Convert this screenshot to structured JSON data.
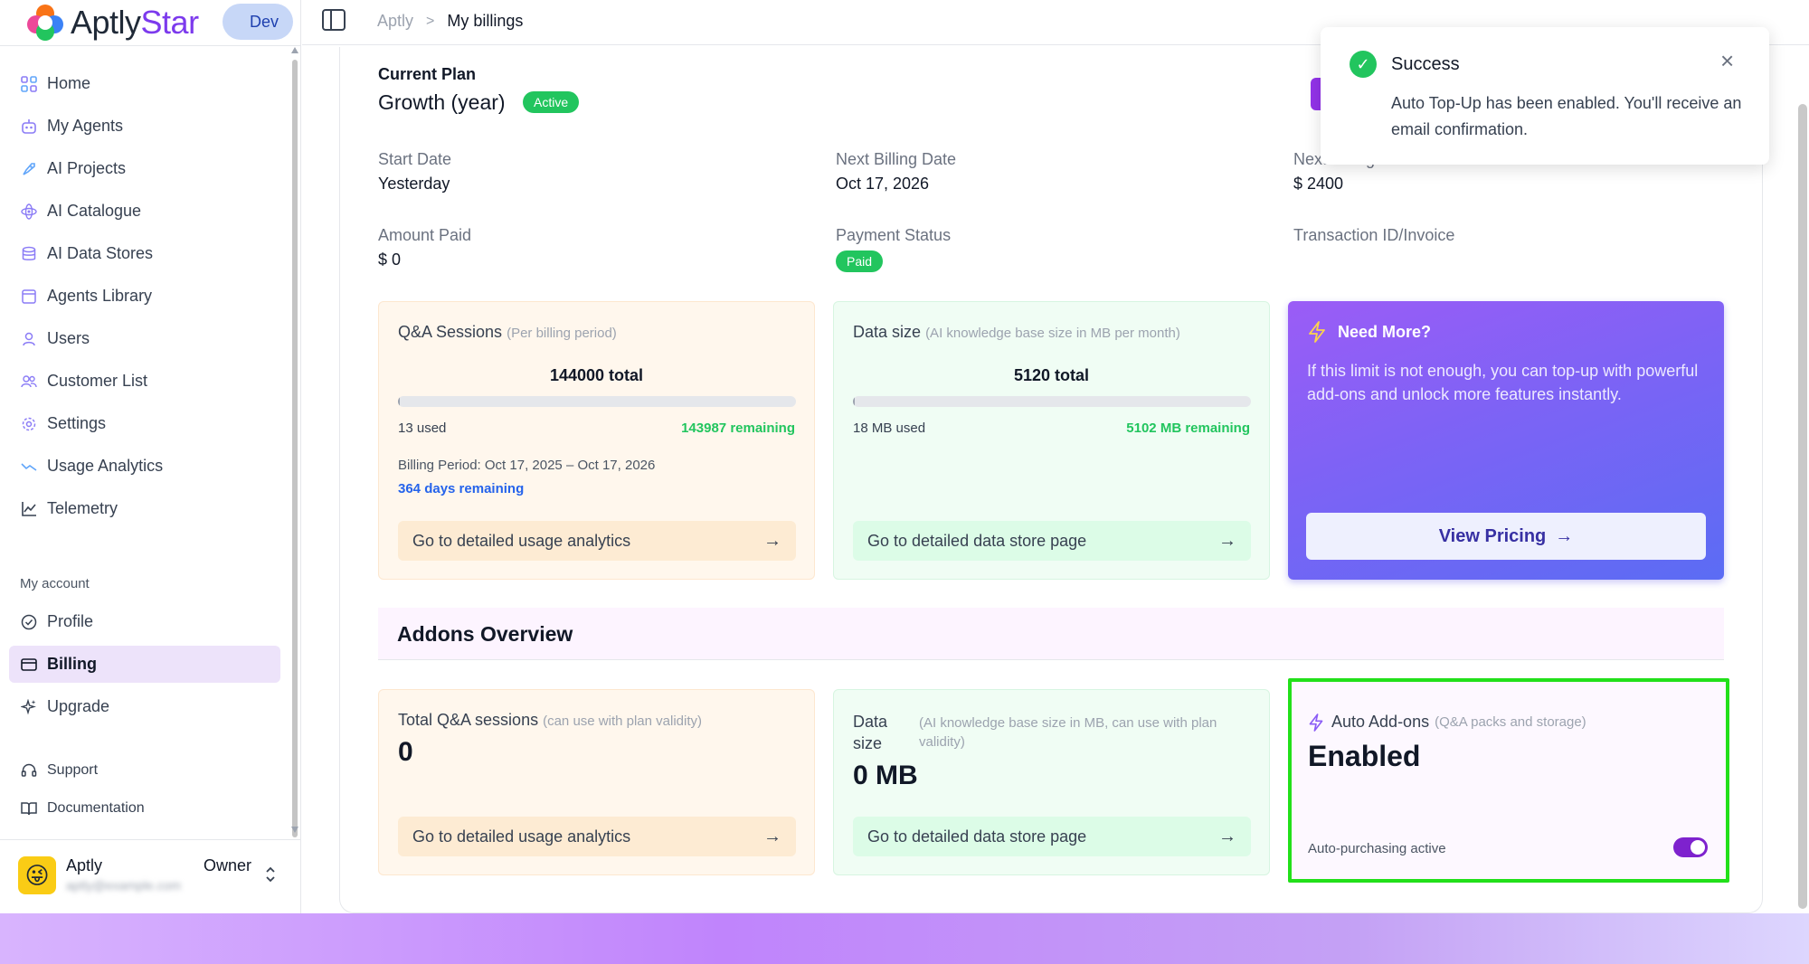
{
  "brand": {
    "name_main": "Aptly",
    "name_accent": "Star",
    "env": "Dev"
  },
  "sidebar": {
    "items": [
      {
        "label": "Home",
        "icon": "grid-icon"
      },
      {
        "label": "My Agents",
        "icon": "robot-icon"
      },
      {
        "label": "AI Projects",
        "icon": "rocket-icon"
      },
      {
        "label": "AI Catalogue",
        "icon": "atom-icon"
      },
      {
        "label": "AI Data Stores",
        "icon": "database-icon"
      },
      {
        "label": "Agents Library",
        "icon": "library-icon"
      },
      {
        "label": "Users",
        "icon": "user-icon"
      },
      {
        "label": "Customer List",
        "icon": "users-icon"
      },
      {
        "label": "Settings",
        "icon": "gear-icon"
      },
      {
        "label": "Usage Analytics",
        "icon": "trend-icon"
      },
      {
        "label": "Telemetry",
        "icon": "line-chart-icon"
      }
    ],
    "section_account": "My account",
    "account_items": [
      {
        "label": "Profile",
        "icon": "check-circle-icon"
      },
      {
        "label": "Billing",
        "icon": "card-icon"
      },
      {
        "label": "Upgrade",
        "icon": "sparkle-icon"
      }
    ],
    "support_items": [
      {
        "label": "Support",
        "icon": "headset-icon"
      },
      {
        "label": "Documentation",
        "icon": "book-icon"
      }
    ],
    "user": {
      "name": "Aptly",
      "email": "aptly@example.com",
      "role": "Owner"
    }
  },
  "breadcrumb": {
    "root": "Aptly",
    "current": "My billings"
  },
  "plan": {
    "label": "Current Plan",
    "name": "Growth (year)",
    "status": "Active",
    "start_date_label": "Start Date",
    "start_date": "Yesterday",
    "next_billing_label": "Next Billing Date",
    "next_billing": "Oct 17, 2026",
    "next_amount_label": "Next Billing Amount",
    "next_amount": "$ 2400",
    "amount_paid_label": "Amount Paid",
    "amount_paid": "$ 0",
    "payment_status_label": "Payment Status",
    "payment_status": "Paid",
    "transaction_label": "Transaction ID/Invoice"
  },
  "qa_card": {
    "title": "Q&A Sessions",
    "subtitle": "(Per billing period)",
    "total": "144000 total",
    "used": "13 used",
    "remaining": "143987 remaining",
    "used_fraction": 0.0001,
    "period": "Billing Period: Oct 17, 2025 – Oct 17, 2026",
    "days_remaining": "364 days remaining",
    "link": "Go to detailed usage analytics"
  },
  "data_card": {
    "title": "Data size",
    "subtitle": "(AI knowledge base size in MB per month)",
    "total": "5120 total",
    "used": "18 MB used",
    "remaining": "5102 MB remaining",
    "used_fraction": 0.0035,
    "link": "Go to detailed data store page"
  },
  "more_card": {
    "title": "Need More?",
    "text": "If this limit is not enough, you can top-up with powerful add-ons and unlock more features instantly.",
    "button": "View Pricing"
  },
  "addons": {
    "header": "Addons Overview",
    "qa": {
      "title": "Total Q&A sessions",
      "subtitle": "(can use with plan validity)",
      "value": "0",
      "link": "Go to detailed usage analytics"
    },
    "data": {
      "title_line1": "Data",
      "title_line2": "size",
      "subtitle": "(AI knowledge base size in MB, can use with plan validity)",
      "value": "0 MB",
      "link": "Go to detailed data store page"
    },
    "auto": {
      "title": "Auto Add-ons",
      "subtitle": "(Q&A packs and storage)",
      "state": "Enabled",
      "note": "Auto-purchasing active",
      "toggle_on": true
    }
  },
  "toast": {
    "title": "Success",
    "message": "Auto Top-Up has been enabled. You'll receive an email confirmation."
  },
  "colors": {
    "accent": "#7e22ce",
    "success": "#22c55e",
    "highlight_border": "#22e01a"
  }
}
